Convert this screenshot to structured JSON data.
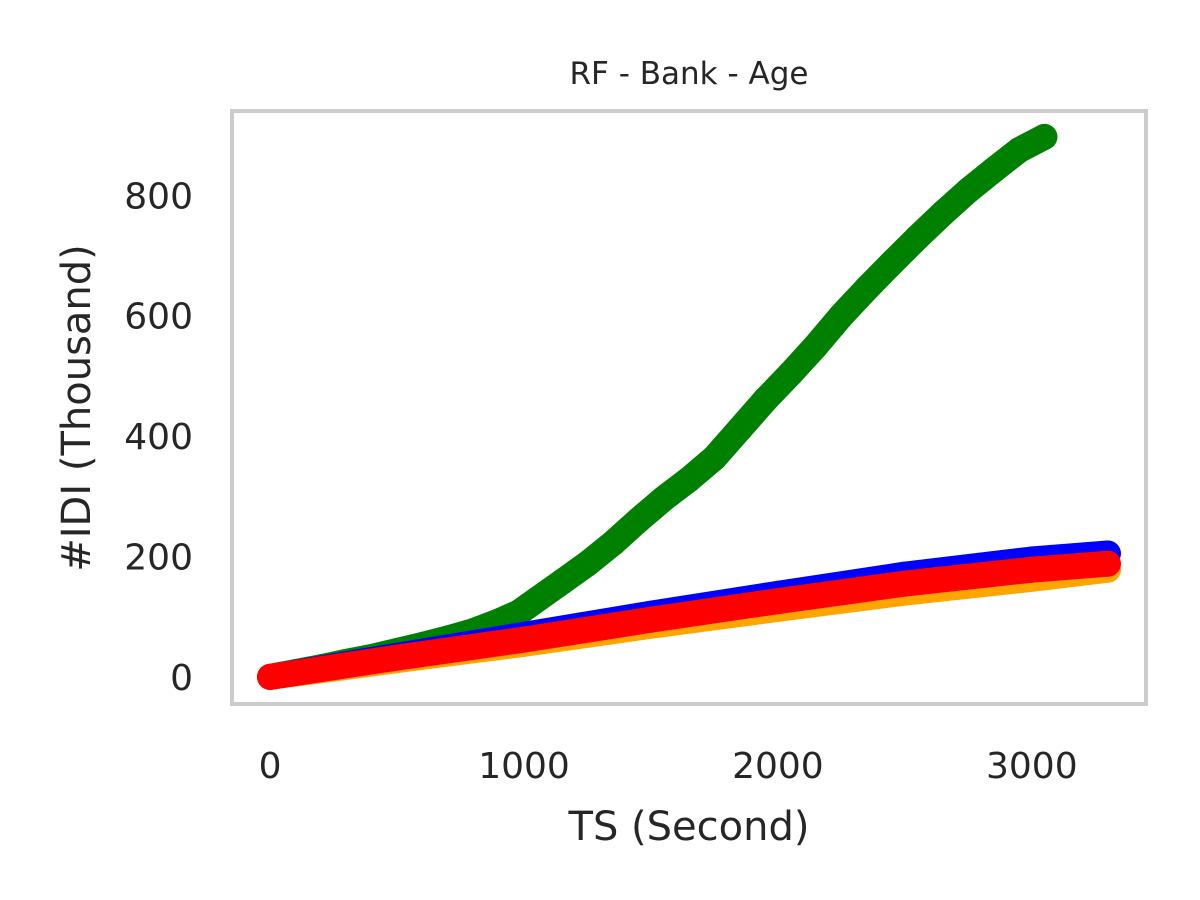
{
  "chart_data": {
    "type": "scatter",
    "title": "RF - Bank - Age",
    "xlabel": "TS (Second)",
    "ylabel": "#IDI (Thousand)",
    "xlim": [
      -150,
      3450
    ],
    "ylim": [
      -45,
      940
    ],
    "xticks": [
      0,
      1000,
      2000,
      3000
    ],
    "yticks": [
      0,
      200,
      400,
      600,
      800
    ],
    "grid": false,
    "series": [
      {
        "color": "#008000",
        "points": [
          [
            0,
            0
          ],
          [
            100,
            8
          ],
          [
            200,
            16
          ],
          [
            300,
            25
          ],
          [
            400,
            33
          ],
          [
            500,
            43
          ],
          [
            600,
            53
          ],
          [
            700,
            64
          ],
          [
            800,
            76
          ],
          [
            900,
            92
          ],
          [
            980,
            107
          ],
          [
            1050,
            128
          ],
          [
            1150,
            158
          ],
          [
            1250,
            188
          ],
          [
            1350,
            222
          ],
          [
            1450,
            260
          ],
          [
            1550,
            296
          ],
          [
            1650,
            328
          ],
          [
            1750,
            364
          ],
          [
            1850,
            412
          ],
          [
            1950,
            460
          ],
          [
            2050,
            504
          ],
          [
            2150,
            550
          ],
          [
            2250,
            600
          ],
          [
            2350,
            645
          ],
          [
            2450,
            688
          ],
          [
            2550,
            730
          ],
          [
            2650,
            770
          ],
          [
            2750,
            808
          ],
          [
            2850,
            842
          ],
          [
            2950,
            875
          ],
          [
            3050,
            897
          ]
        ]
      },
      {
        "color": "#0000ff",
        "points": [
          [
            0,
            0
          ],
          [
            500,
            35
          ],
          [
            1000,
            70
          ],
          [
            1500,
            105
          ],
          [
            2000,
            138
          ],
          [
            2500,
            170
          ],
          [
            3000,
            195
          ],
          [
            3300,
            205
          ]
        ]
      },
      {
        "color": "#ffa500",
        "points": [
          [
            0,
            0
          ],
          [
            500,
            28
          ],
          [
            1000,
            55
          ],
          [
            1500,
            85
          ],
          [
            2000,
            113
          ],
          [
            2500,
            140
          ],
          [
            3000,
            163
          ],
          [
            3300,
            178
          ]
        ]
      },
      {
        "color": "#ff0000",
        "points": [
          [
            0,
            0
          ],
          [
            500,
            32
          ],
          [
            1000,
            62
          ],
          [
            1500,
            95
          ],
          [
            2000,
            126
          ],
          [
            2500,
            155
          ],
          [
            3000,
            178
          ],
          [
            3300,
            188
          ]
        ]
      }
    ]
  }
}
